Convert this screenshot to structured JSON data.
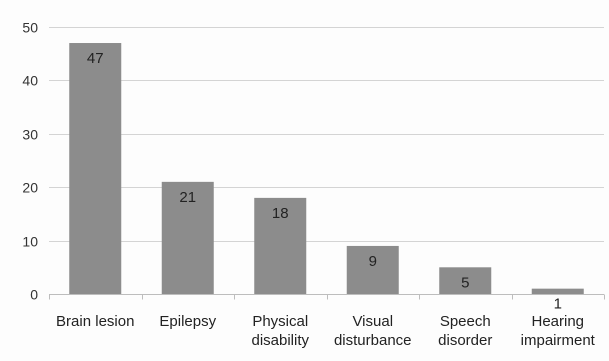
{
  "chart_data": {
    "type": "bar",
    "categories": [
      [
        "Brain lesion"
      ],
      [
        "Epilepsy"
      ],
      [
        "Physical",
        "disability"
      ],
      [
        "Visual",
        "disturbance"
      ],
      [
        "Speech",
        "disorder"
      ],
      [
        "Hearing",
        "impairment"
      ]
    ],
    "values": [
      47,
      21,
      18,
      9,
      5,
      1
    ],
    "ylim": [
      0,
      50
    ],
    "yticks": [
      0,
      10,
      20,
      30,
      40,
      50
    ],
    "grid": true,
    "legend": "none",
    "bar_color": "#8c8c8c",
    "title": "",
    "xlabel": "",
    "ylabel": ""
  }
}
